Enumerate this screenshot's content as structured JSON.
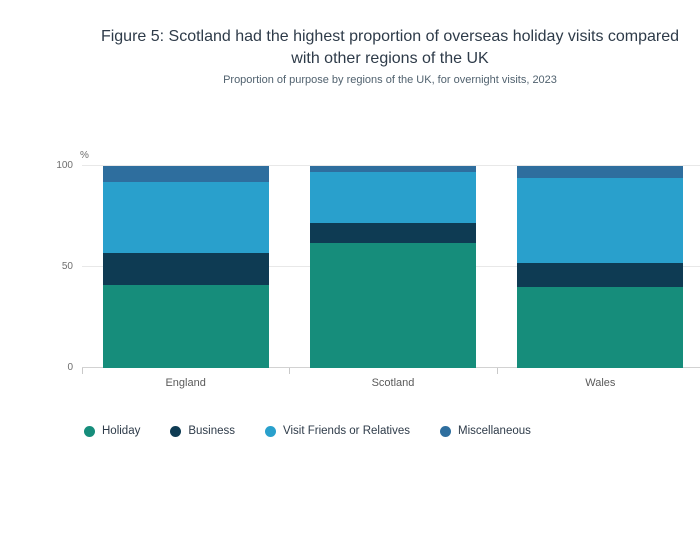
{
  "header": {
    "title": "Figure 5: Scotland had the highest proportion of overseas holiday visits compared with other regions of the UK",
    "subtitle": "Proportion of purpose by regions of the UK, for overnight visits, 2023"
  },
  "chart_data": {
    "type": "bar",
    "stacked": true,
    "title": "Figure 5: Scotland had the highest proportion of overseas holiday visits compared with other regions of the UK",
    "subtitle": "Proportion of purpose by regions of the UK, for overnight visits, 2023",
    "categories": [
      "England",
      "Scotland",
      "Wales"
    ],
    "series": [
      {
        "name": "Holiday",
        "color": "#168d7b",
        "values": [
          41,
          62,
          40
        ]
      },
      {
        "name": "Business",
        "color": "#0e3b53",
        "values": [
          16,
          10,
          12
        ]
      },
      {
        "name": "Visit Friends or Relatives",
        "color": "#29a0cc",
        "values": [
          35,
          25,
          42
        ]
      },
      {
        "name": "Miscellaneous",
        "color": "#2e6e9e",
        "values": [
          8,
          3,
          6
        ]
      }
    ],
    "xlabel": "",
    "ylabel": "%",
    "ylim": [
      0,
      100
    ],
    "yticks": [
      0,
      50,
      100
    ],
    "grid": true,
    "legend_position": "bottom"
  }
}
